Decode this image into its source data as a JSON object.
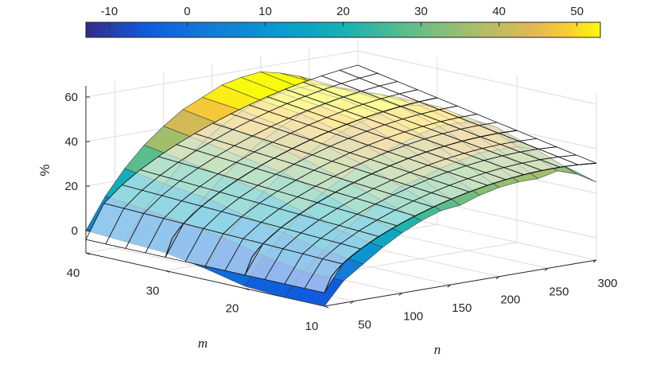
{
  "chart_data": {
    "type": "surface",
    "xlabel": "n",
    "ylabel": "m",
    "zlabel": "%",
    "x_ticks": [
      50,
      100,
      150,
      200,
      250,
      300
    ],
    "y_ticks": [
      10,
      20,
      30,
      40
    ],
    "z_ticks": [
      0,
      20,
      40,
      60
    ],
    "xlim": [
      20,
      300
    ],
    "ylim": [
      10,
      40
    ],
    "zlim": [
      -10,
      65
    ],
    "colorbar": {
      "ticks": [
        -10,
        0,
        10,
        20,
        30,
        40,
        50
      ],
      "lim": [
        -13,
        53
      ],
      "colormap": "parula",
      "placement": "top"
    },
    "series": [
      {
        "name": "",
        "kind": "data surface",
        "m": [
          10,
          15,
          20,
          25,
          30,
          35,
          40
        ],
        "n": [
          20,
          40,
          60,
          80,
          100,
          120,
          140,
          160,
          180,
          200,
          220,
          240,
          260,
          280,
          300
        ],
        "values": [
          [
            -10,
            0,
            6,
            12,
            17,
            21,
            24,
            25,
            28,
            30,
            31,
            31,
            33,
            30,
            25
          ],
          [
            -10,
            0,
            8,
            15,
            21,
            26,
            31,
            33,
            36,
            38,
            40,
            40,
            40,
            37,
            30
          ],
          [
            -9,
            3,
            12,
            20,
            27,
            32,
            37,
            40,
            43,
            46,
            48,
            48,
            47,
            43,
            33
          ],
          [
            -5,
            7,
            16,
            25,
            32,
            37,
            42,
            46,
            49,
            51,
            53,
            52,
            50,
            45,
            35
          ],
          [
            -2,
            10,
            20,
            28,
            35,
            41,
            46,
            50,
            52,
            54,
            55,
            53,
            50,
            44,
            35
          ],
          [
            -1,
            12,
            22,
            31,
            38,
            44,
            49,
            52,
            54,
            55,
            55,
            52,
            48,
            41,
            32
          ],
          [
            0,
            14,
            25,
            34,
            41,
            47,
            51,
            55,
            57,
            58,
            56,
            53,
            47,
            39,
            30
          ]
        ]
      },
      {
        "name": "",
        "kind": "upper bound wireframe"
      }
    ]
  }
}
